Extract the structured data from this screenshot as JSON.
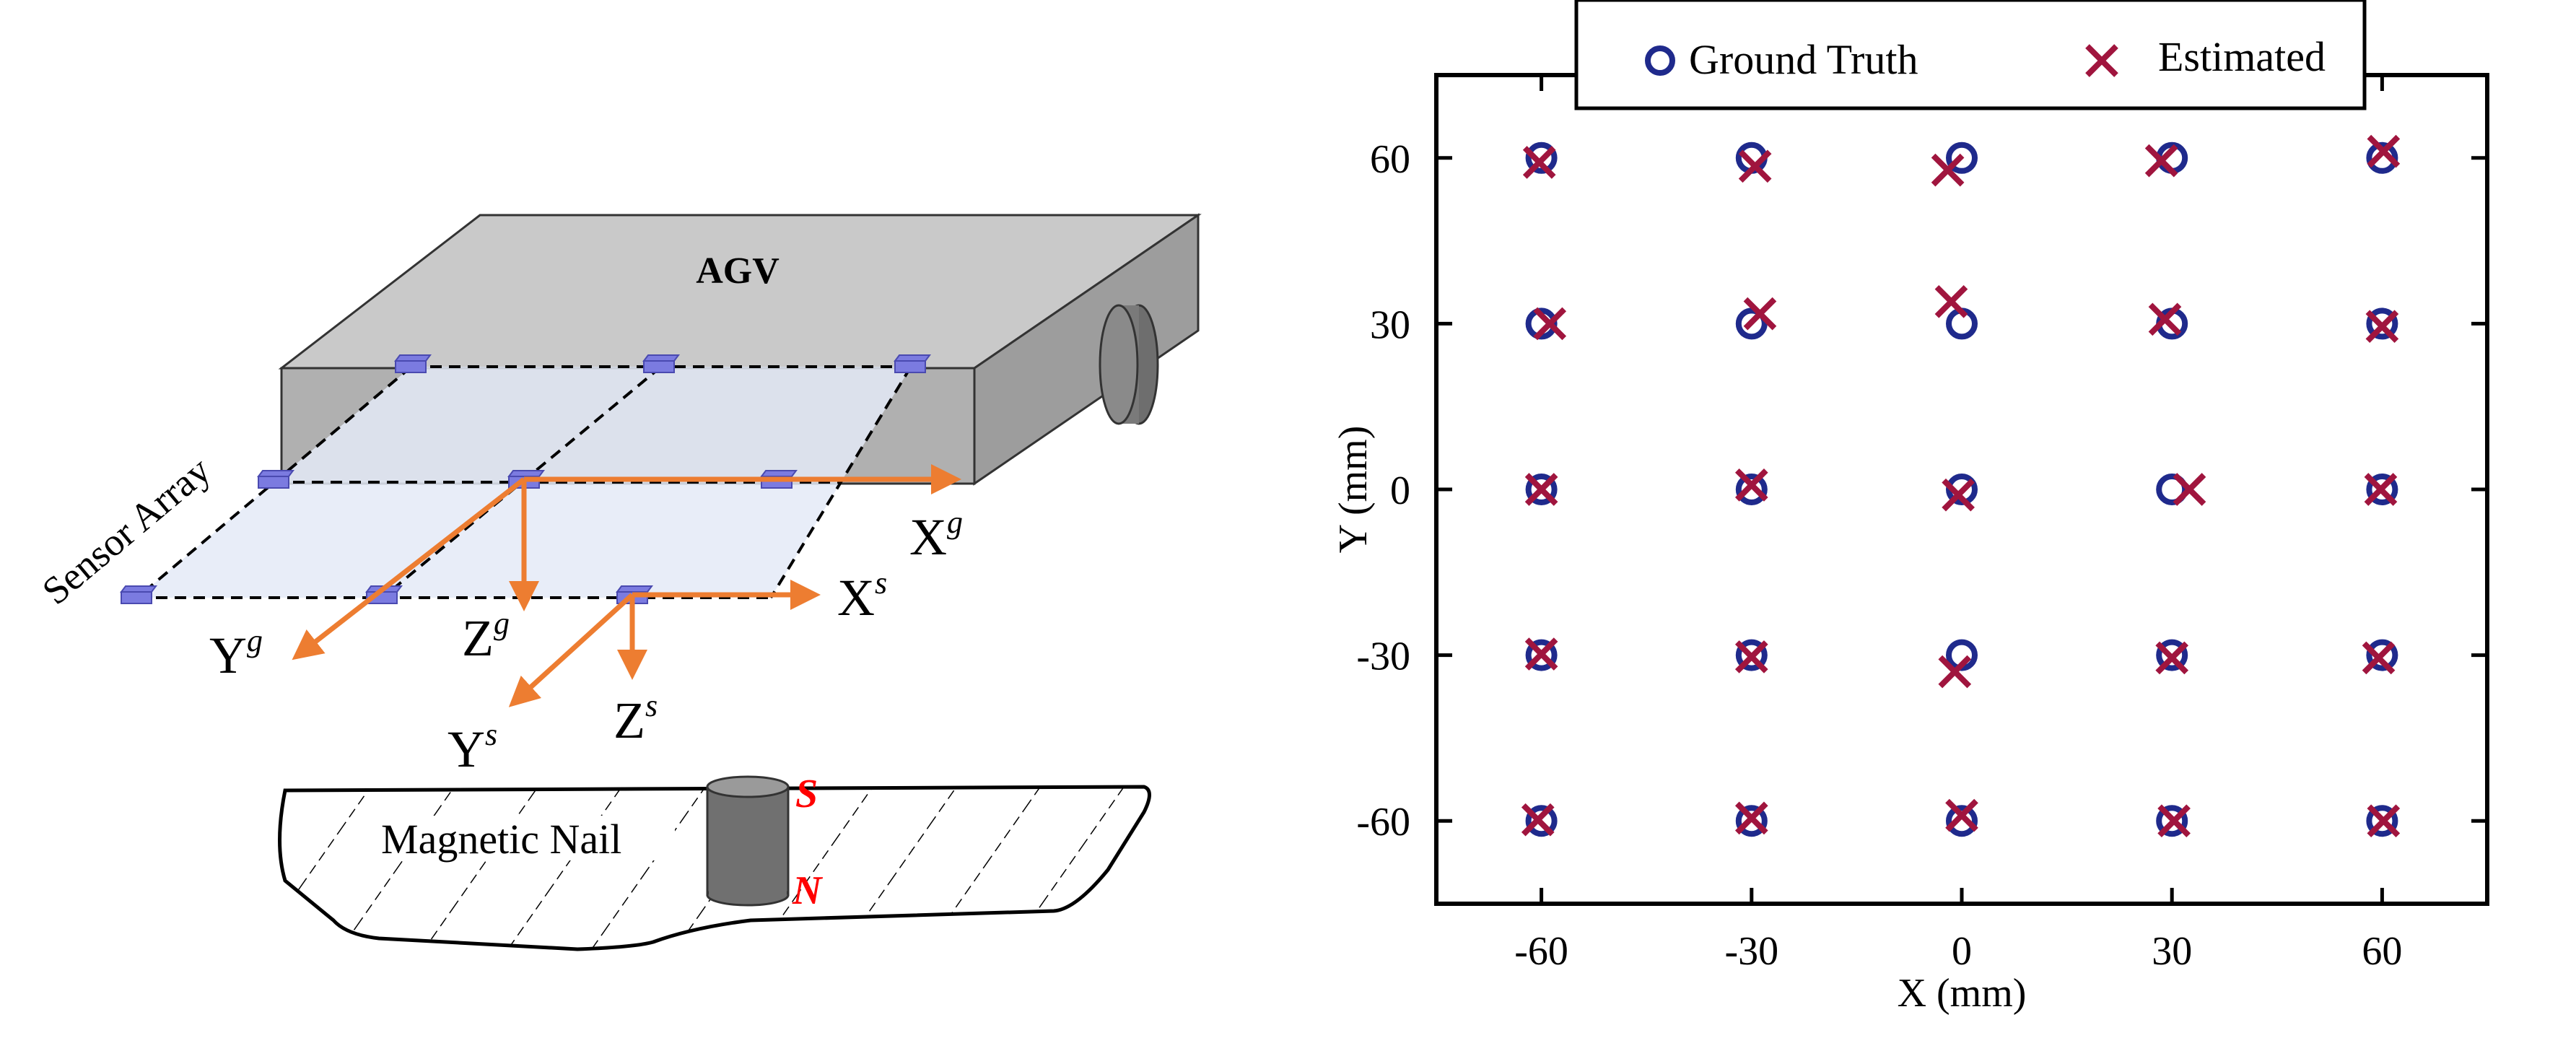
{
  "diagram": {
    "agv_label": "AGV",
    "sensor_array_label": "Sensor Array",
    "magnetic_nail_label": "Magnetic Nail",
    "pole_s": "S",
    "pole_n": "N",
    "axes": {
      "xg": "X",
      "xg_sup": "g",
      "yg": "Y",
      "yg_sup": "g",
      "zg": "Z",
      "zg_sup": "g",
      "xs": "X",
      "xs_sup": "s",
      "ys": "Y",
      "ys_sup": "s",
      "zs": "Z",
      "zs_sup": "s"
    },
    "colors": {
      "arrow": "#ED7D31",
      "sensor": "#7B7BE0",
      "plane": "#E4EAF7",
      "box_top": "#C8C8C8",
      "box_side": "#A6A6A6",
      "pole": "#FF0000"
    }
  },
  "chart_data": {
    "type": "scatter",
    "title": "",
    "xlabel": "X (mm)",
    "ylabel": "Y (mm)",
    "xlim": [
      -75,
      75
    ],
    "ylim": [
      -75,
      75
    ],
    "xticks": [
      -60,
      -30,
      0,
      30,
      60
    ],
    "yticks": [
      -60,
      -30,
      0,
      30,
      60
    ],
    "grid": false,
    "legend_position": "top-center",
    "series": [
      {
        "name": "Ground Truth",
        "marker": "circle",
        "color": "#1F2A8C",
        "points": [
          [
            -60,
            60
          ],
          [
            -30,
            60
          ],
          [
            0,
            60
          ],
          [
            30,
            60
          ],
          [
            60,
            60
          ],
          [
            -60,
            30
          ],
          [
            -30,
            30
          ],
          [
            0,
            30
          ],
          [
            30,
            30
          ],
          [
            60,
            30
          ],
          [
            -60,
            0
          ],
          [
            -30,
            0
          ],
          [
            0,
            0
          ],
          [
            30,
            0
          ],
          [
            60,
            0
          ],
          [
            -60,
            -30
          ],
          [
            -30,
            -30
          ],
          [
            0,
            -30
          ],
          [
            30,
            -30
          ],
          [
            60,
            -30
          ],
          [
            -60,
            -60
          ],
          [
            -30,
            -60
          ],
          [
            0,
            -60
          ],
          [
            30,
            -60
          ],
          [
            60,
            -60
          ]
        ]
      },
      {
        "name": "Estimated",
        "marker": "x",
        "color": "#A0153E",
        "points": [
          [
            -60.3,
            59.2
          ],
          [
            -29.5,
            58.5
          ],
          [
            -2.0,
            57.8
          ],
          [
            28.5,
            59.5
          ],
          [
            60.2,
            61.2
          ],
          [
            -58.8,
            30.0
          ],
          [
            -28.8,
            31.8
          ],
          [
            -1.5,
            34.0
          ],
          [
            29.0,
            30.8
          ],
          [
            60.0,
            29.5
          ],
          [
            -60.0,
            0.0
          ],
          [
            -30.0,
            0.8
          ],
          [
            -0.5,
            -1.0
          ],
          [
            32.5,
            0.0
          ],
          [
            59.8,
            0.0
          ],
          [
            -60.0,
            -29.8
          ],
          [
            -30.0,
            -30.3
          ],
          [
            -1.0,
            -33.0
          ],
          [
            30.0,
            -30.5
          ],
          [
            59.5,
            -30.5
          ],
          [
            -60.5,
            -59.8
          ],
          [
            -30.0,
            -59.5
          ],
          [
            0.0,
            -59.0
          ],
          [
            30.3,
            -60.0
          ],
          [
            60.2,
            -60.0
          ]
        ]
      }
    ]
  }
}
